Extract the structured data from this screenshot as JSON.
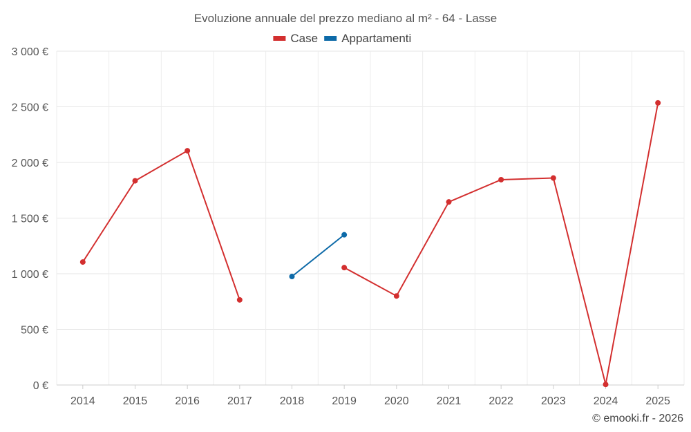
{
  "chart_data": {
    "type": "line",
    "title": "Evoluzione annuale del prezzo mediano al m² - 64 - Lasse",
    "xlabel": "",
    "ylabel": "",
    "ylim": [
      0,
      3000
    ],
    "yticks": [
      0,
      500,
      1000,
      1500,
      2000,
      2500,
      3000
    ],
    "ytick_labels": [
      "0 €",
      "500 €",
      "1 000 €",
      "1 500 €",
      "2 000 €",
      "2 500 €",
      "3 000 €"
    ],
    "categories": [
      "2014",
      "2015",
      "2016",
      "2017",
      "2018",
      "2019",
      "2020",
      "2021",
      "2022",
      "2023",
      "2024",
      "2025"
    ],
    "grid": true,
    "legend_position": "top-center",
    "series": [
      {
        "name": "Case",
        "color": "#d32f2f",
        "values": [
          1105,
          1835,
          2105,
          765,
          null,
          1055,
          800,
          1645,
          1845,
          1860,
          5,
          2535
        ]
      },
      {
        "name": "Appartamenti",
        "color": "#0d6aa8",
        "values": [
          null,
          null,
          null,
          null,
          975,
          1350,
          null,
          null,
          null,
          null,
          null,
          null
        ]
      }
    ],
    "credit": "© emooki.fr - 2026"
  }
}
